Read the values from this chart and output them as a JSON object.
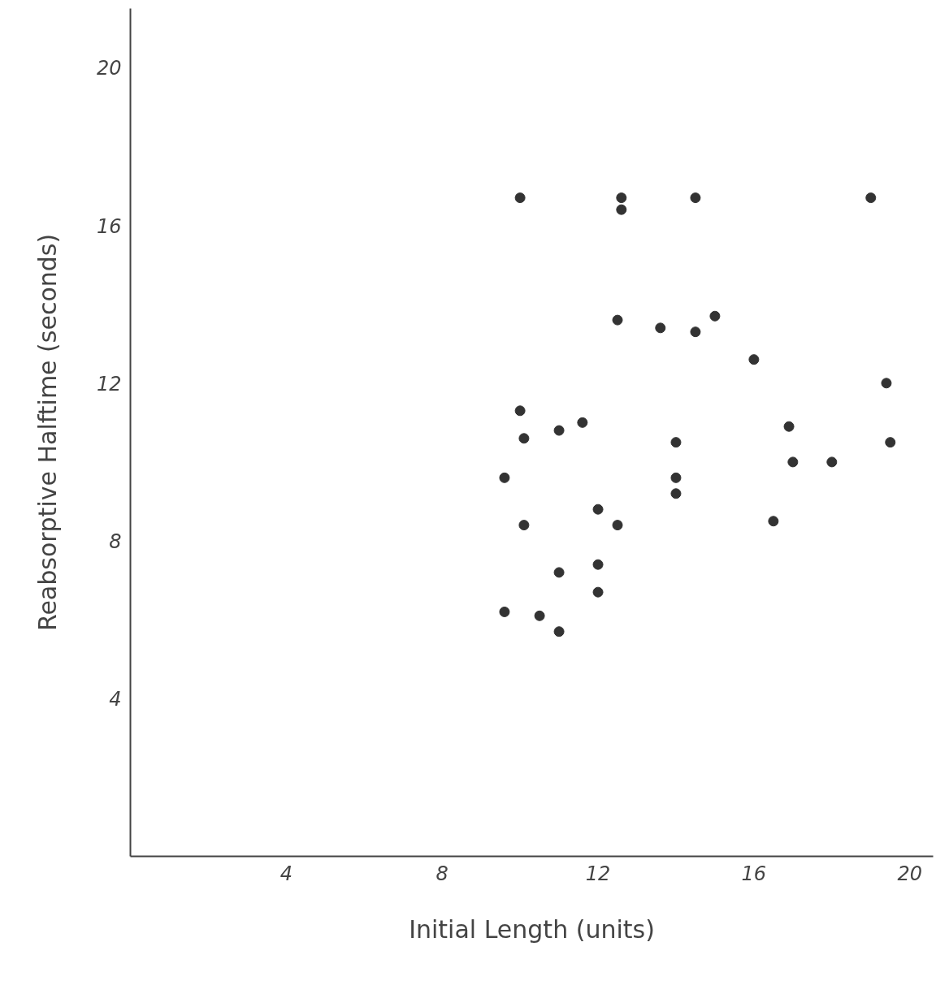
{
  "chart_data": {
    "type": "scatter",
    "xlabel": "Initial Length (units)",
    "ylabel": "Reabsorptive Halftime (seconds)",
    "x": [
      10.0,
      12.6,
      12.6,
      14.5,
      19.0,
      12.5,
      13.6,
      14.5,
      15.0,
      16.0,
      19.4,
      10.0,
      10.1,
      11.0,
      11.6,
      14.0,
      16.9,
      19.5,
      17.0,
      18.0,
      9.6,
      14.0,
      14.0,
      10.1,
      12.0,
      12.5,
      16.5,
      11.0,
      12.0,
      12.0,
      9.6,
      10.5,
      11.0
    ],
    "series": [
      {
        "color": "#333333",
        "values": [
          16.7,
          16.4,
          16.7,
          16.7,
          16.7,
          13.6,
          13.4,
          13.3,
          13.7,
          12.6,
          12.0,
          11.3,
          10.6,
          10.8,
          11.0,
          10.5,
          10.9,
          10.5,
          10.0,
          10.0,
          9.6,
          9.6,
          9.2,
          8.4,
          8.8,
          8.4,
          8.5,
          7.2,
          7.4,
          6.7,
          6.2,
          6.1,
          5.7
        ]
      }
    ],
    "xlim": [
      0,
      20.6
    ],
    "ylim": [
      0,
      21.5
    ],
    "xticks": [
      4,
      8,
      12,
      16,
      20
    ],
    "yticks": [
      4,
      8,
      12,
      16,
      20
    ],
    "marker": "circle",
    "grid": false
  }
}
